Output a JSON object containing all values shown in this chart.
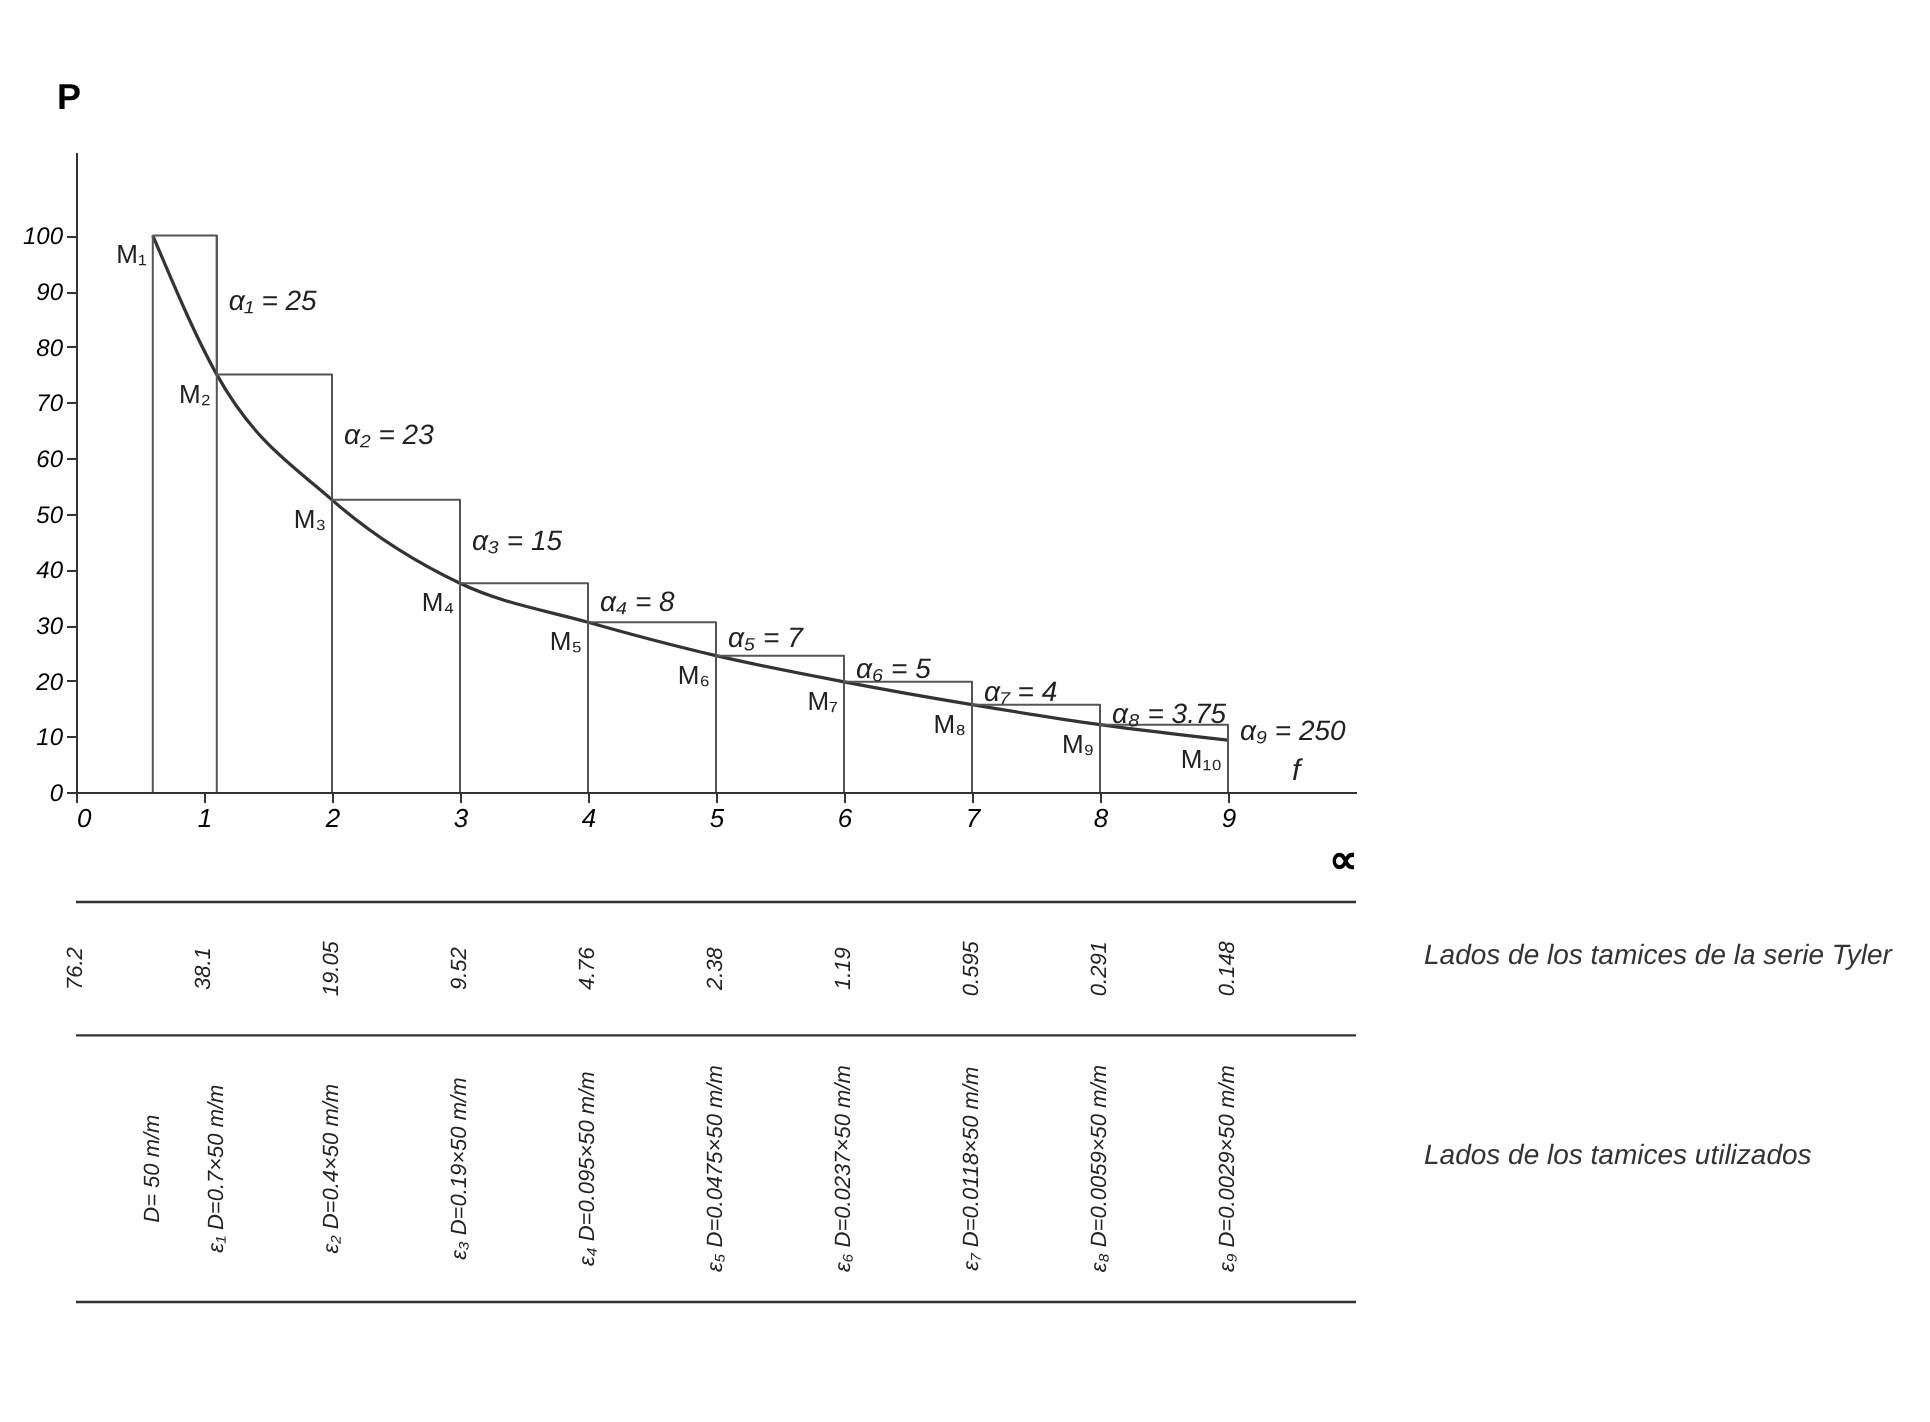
{
  "chart_data": {
    "type": "line",
    "xlabel": "∝",
    "ylabel": "P",
    "x": [
      0.6,
      1.1,
      2,
      3,
      4,
      5,
      6,
      7,
      8,
      9
    ],
    "series": [
      {
        "type": "line",
        "color": "#333333",
        "values": [
          100,
          75,
          52.5,
          37.5,
          30.5,
          24.5,
          19.8,
          15.7,
          12.1,
          9.3
        ]
      },
      {
        "type": "step",
        "color": "#555555",
        "values": [
          100,
          75,
          52.5,
          37.5,
          30.5,
          24.5,
          19.8,
          15.7,
          12.1,
          9.3
        ]
      }
    ],
    "ref_lines": [
      {
        "axis": "x",
        "value": 0.6
      },
      {
        "axis": "x",
        "value": 1.1
      },
      {
        "axis": "x",
        "value": 2
      },
      {
        "axis": "x",
        "value": 3
      },
      {
        "axis": "x",
        "value": 4
      },
      {
        "axis": "x",
        "value": 5
      },
      {
        "axis": "x",
        "value": 6
      },
      {
        "axis": "x",
        "value": 7
      },
      {
        "axis": "x",
        "value": 8
      },
      {
        "axis": "x",
        "value": 9
      }
    ],
    "xlim": [
      0,
      10
    ],
    "ylim": [
      0,
      115
    ],
    "xticks": [
      0,
      1,
      2,
      3,
      4,
      5,
      6,
      7,
      8,
      9
    ],
    "yticks": [
      0,
      10,
      20,
      30,
      40,
      50,
      60,
      70,
      80,
      90,
      100
    ],
    "annotations": [
      {
        "text": "M₁",
        "x": 0.6,
        "y": 100
      },
      {
        "text": "M₂",
        "x": 1.1,
        "y": 75
      },
      {
        "text": "M₃",
        "x": 2,
        "y": 52.5
      },
      {
        "text": "M₄",
        "x": 3,
        "y": 37.5
      },
      {
        "text": "M₅",
        "x": 4,
        "y": 30.5
      },
      {
        "text": "M₆",
        "x": 5,
        "y": 24.5
      },
      {
        "text": "M₇",
        "x": 6,
        "y": 19.8
      },
      {
        "text": "M₈",
        "x": 7,
        "y": 15.7
      },
      {
        "text": "M₉",
        "x": 8,
        "y": 12.1
      },
      {
        "text": "M₁₀",
        "x": 9,
        "y": 9.3
      },
      {
        "text": "α₁ = 25",
        "x": 1.1,
        "y": 88
      },
      {
        "text": "α₂ = 23",
        "x": 2,
        "y": 64
      },
      {
        "text": "α₃ = 15",
        "x": 3,
        "y": 45
      },
      {
        "text": "α₄ = 8",
        "x": 4,
        "y": 34
      },
      {
        "text": "α₅ = 7",
        "x": 5,
        "y": 27.5
      },
      {
        "text": "α₆ = 5",
        "x": 6,
        "y": 22
      },
      {
        "text": "α₇ = 4",
        "x": 7,
        "y": 17.7
      },
      {
        "text": "α₈ = 3.75",
        "x": 8,
        "y": 13.9
      },
      {
        "text": "α₉ = 250",
        "x": 9,
        "y": 10.7
      },
      "f",
      "Lados de los tamices de la serie Tyler",
      "76.2",
      "38.1",
      "19.05",
      "9.52",
      "4.76",
      "2.38",
      "1.19",
      "0.595",
      "0.291",
      "0.148",
      "Lados de los tamices utilizados",
      "D= 50 m/m",
      "ε₁ D=0.7×50 m/m",
      "ε₂ D=0.4×50 m/m",
      "ε₃ D=0.19×50 m/m",
      "ε₄ D=0.095×50 m/m",
      "ε₅ D=0.0475×50 m/m",
      "ε₆ D=0.0237×50 m/m",
      "ε₇ D=0.0118×50 m/m",
      "ε₈ D=0.0059×50 m/m",
      "ε₉ D=0.0029×50 m/m"
    ]
  }
}
